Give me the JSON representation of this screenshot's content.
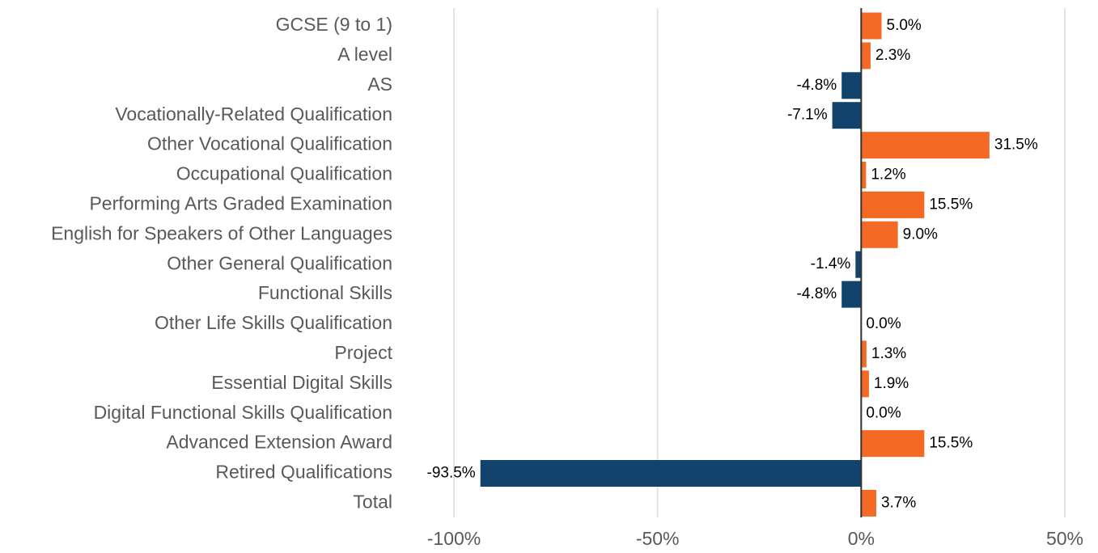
{
  "chart_data": {
    "type": "bar",
    "orientation": "horizontal",
    "categories": [
      "GCSE (9 to 1)",
      "A level",
      "AS",
      "Vocationally-Related Qualification",
      "Other Vocational Qualification",
      "Occupational Qualification",
      "Performing Arts Graded Examination",
      "English for Speakers of Other Languages",
      "Other General Qualification",
      "Functional Skills",
      "Other Life Skills Qualification",
      "Project",
      "Essential Digital Skills",
      "Digital Functional Skills Qualification",
      "Advanced Extension Award",
      "Retired Qualifications",
      "Total"
    ],
    "values": [
      5.0,
      2.3,
      -4.8,
      -7.1,
      31.5,
      1.2,
      15.5,
      9.0,
      -1.4,
      -4.8,
      0.0,
      1.3,
      1.9,
      0.0,
      15.5,
      -93.5,
      3.7
    ],
    "value_labels": [
      "5.0%",
      "2.3%",
      "-4.8%",
      "-7.1%",
      "31.5%",
      "1.2%",
      "15.5%",
      "9.0%",
      "-1.4%",
      "-4.8%",
      "0.0%",
      "1.3%",
      "1.9%",
      "0.0%",
      "15.5%",
      "-93.5%",
      "3.7%"
    ],
    "positive_color": "#f46a25",
    "negative_color": "#12436d",
    "xlim": [
      -100,
      50
    ],
    "xticks": [
      {
        "value": -100,
        "label": "-100%"
      },
      {
        "value": -50,
        "label": "-50%"
      },
      {
        "value": 0,
        "label": "0%"
      },
      {
        "value": 50,
        "label": "50%"
      }
    ],
    "grid": true
  }
}
